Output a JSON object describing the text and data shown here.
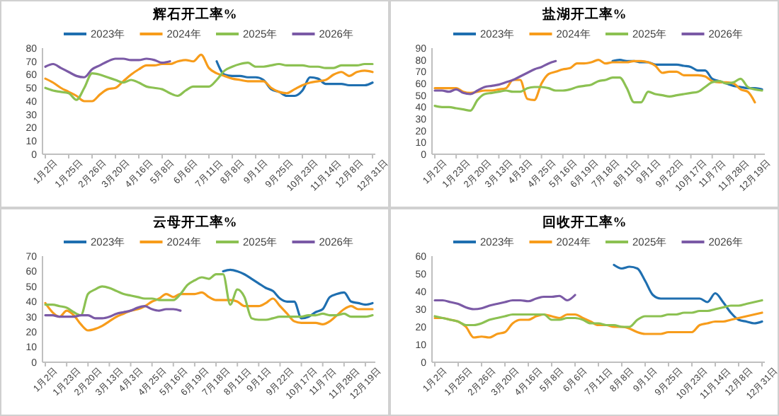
{
  "chart_data": [
    {
      "type": "line",
      "title": "辉石开工率%",
      "legend": "top",
      "grid": false,
      "marker": "none",
      "ylim": [
        0,
        80
      ],
      "yticks": [
        0,
        10,
        20,
        30,
        40,
        50,
        60,
        70,
        80
      ],
      "categories": [
        "1月2日",
        null,
        null,
        "1月25日",
        null,
        null,
        "2月26日",
        null,
        null,
        "3月20日",
        null,
        null,
        "4月16日",
        null,
        null,
        "5月8日",
        null,
        null,
        "6月6日",
        null,
        null,
        "7月11日",
        null,
        null,
        "8月8日",
        null,
        null,
        "9月1日",
        null,
        null,
        "9月25日",
        null,
        null,
        "10月23日",
        null,
        null,
        "11月14日",
        null,
        null,
        "12月8日",
        null,
        null,
        "12月31日"
      ],
      "series": [
        {
          "name": "2023年",
          "color": "#1f6fb0",
          "values": [
            null,
            null,
            null,
            null,
            null,
            null,
            null,
            null,
            null,
            null,
            null,
            null,
            null,
            null,
            null,
            null,
            null,
            null,
            null,
            null,
            null,
            null,
            70,
            60,
            59,
            59,
            58,
            58,
            56,
            49,
            47,
            44,
            44,
            48,
            58,
            57,
            53,
            53,
            53,
            52,
            52,
            52,
            54
          ]
        },
        {
          "name": "2024年",
          "color": "#f79c1b",
          "values": [
            57,
            54,
            50,
            47,
            44,
            40,
            40,
            45,
            49,
            50,
            55,
            60,
            64,
            67,
            67,
            68,
            68,
            70,
            71,
            70,
            75,
            65,
            61,
            59,
            57,
            56,
            55,
            55,
            55,
            50,
            47,
            46,
            49,
            52,
            54,
            55,
            56,
            60,
            62,
            59,
            62,
            63,
            62
          ]
        },
        {
          "name": "2025年",
          "color": "#8cc152",
          "values": [
            50,
            48,
            47,
            46,
            41,
            50,
            61,
            60,
            58,
            56,
            54,
            56,
            54,
            51,
            50,
            49,
            46,
            44,
            48,
            51,
            51,
            51,
            56,
            63,
            66,
            68,
            69,
            66,
            66,
            67,
            68,
            67,
            67,
            67,
            66,
            66,
            65,
            65,
            67,
            67,
            67,
            68,
            68
          ]
        },
        {
          "name": "2026年",
          "color": "#7b5aa6",
          "values": [
            66,
            68,
            65,
            62,
            59,
            58,
            64,
            67,
            70,
            72,
            72,
            71,
            71,
            72,
            71,
            69,
            70,
            null,
            null,
            null,
            null,
            null,
            null,
            null,
            null,
            null,
            null,
            null,
            null,
            null,
            null,
            null,
            null,
            null,
            null,
            null,
            null,
            null,
            null,
            null,
            null,
            null,
            null
          ]
        }
      ]
    },
    {
      "type": "line",
      "title": "盐湖开工率%",
      "legend": "top",
      "grid": false,
      "marker": "none",
      "ylim": [
        0,
        90
      ],
      "yticks": [
        0,
        10,
        20,
        30,
        40,
        50,
        60,
        70,
        80,
        90
      ],
      "categories": [
        "1月2日",
        null,
        null,
        "1月23日",
        null,
        null,
        "2月20日",
        null,
        null,
        "3月13日",
        null,
        null,
        "4月3日",
        null,
        null,
        "4月25日",
        null,
        null,
        "5月16日",
        null,
        null,
        "6月19日",
        null,
        null,
        "7月18日",
        null,
        null,
        "8月11日",
        null,
        null,
        "9月1日",
        null,
        null,
        "9月22日",
        null,
        null,
        "10月17日",
        null,
        null,
        "11月7日",
        null,
        null,
        "11月28日",
        null,
        null,
        "12月19日",
        null
      ],
      "series": [
        {
          "name": "2023年",
          "color": "#1f6fb0",
          "values": [
            null,
            null,
            null,
            null,
            null,
            null,
            null,
            null,
            null,
            null,
            null,
            null,
            null,
            null,
            null,
            null,
            null,
            null,
            null,
            null,
            null,
            null,
            null,
            null,
            null,
            79,
            80,
            79,
            79,
            78,
            78,
            76,
            76,
            76,
            76,
            75,
            74,
            71,
            71,
            64,
            62,
            60,
            58,
            57,
            56,
            56,
            55
          ]
        },
        {
          "name": "2024年",
          "color": "#f79c1b",
          "values": [
            56,
            56,
            56,
            56,
            53,
            52,
            53,
            54,
            54,
            55,
            56,
            63,
            63,
            47,
            46,
            60,
            68,
            70,
            72,
            73,
            77,
            77,
            78,
            80,
            77,
            78,
            78,
            78,
            79,
            79,
            78,
            75,
            69,
            70,
            70,
            67,
            67,
            67,
            66,
            62,
            61,
            61,
            60,
            55,
            53,
            44,
            null
          ]
        },
        {
          "name": "2025年",
          "color": "#8cc152",
          "values": [
            41,
            40,
            40,
            39,
            38,
            37,
            46,
            51,
            52,
            53,
            54,
            53,
            53,
            56,
            57,
            57,
            56,
            54,
            54,
            55,
            57,
            58,
            59,
            62,
            63,
            65,
            65,
            56,
            44,
            44,
            53,
            51,
            50,
            49,
            50,
            51,
            52,
            53,
            57,
            61,
            62,
            60,
            61,
            64,
            57,
            55,
            54
          ]
        },
        {
          "name": "2026年",
          "color": "#7b5aa6",
          "values": [
            54,
            54,
            53,
            55,
            52,
            51,
            54,
            57,
            58,
            59,
            61,
            63,
            66,
            69,
            72,
            74,
            77,
            79,
            null,
            null,
            null,
            null,
            null,
            null,
            null,
            null,
            null,
            null,
            null,
            null,
            null,
            null,
            null,
            null,
            null,
            null,
            null,
            null,
            null,
            null,
            null,
            null,
            null,
            null,
            null,
            null,
            null
          ]
        }
      ]
    },
    {
      "type": "line",
      "title": "云母开工率%",
      "legend": "top",
      "grid": false,
      "marker": "none",
      "ylim": [
        0,
        70
      ],
      "yticks": [
        0,
        10,
        20,
        30,
        40,
        50,
        60,
        70
      ],
      "categories": [
        "1月2日",
        null,
        null,
        "1月23日",
        null,
        null,
        "2月20日",
        null,
        null,
        "3月13日",
        null,
        null,
        "4月3日",
        null,
        null,
        "4月25日",
        null,
        null,
        "5月16日",
        null,
        null,
        "6月19日",
        null,
        null,
        "7月18日",
        null,
        null,
        "8月11日",
        null,
        null,
        "9月1日",
        null,
        null,
        "9月22日",
        null,
        null,
        "10月17日",
        null,
        null,
        "11月7日",
        null,
        null,
        "11月28日",
        null,
        null,
        "12月19日",
        null
      ],
      "series": [
        {
          "name": "2023年",
          "color": "#1f6fb0",
          "values": [
            null,
            null,
            null,
            null,
            null,
            null,
            null,
            null,
            null,
            null,
            null,
            null,
            null,
            null,
            null,
            null,
            null,
            null,
            null,
            null,
            null,
            null,
            null,
            null,
            null,
            60,
            61,
            60,
            58,
            55,
            52,
            49,
            47,
            42,
            40,
            40,
            29,
            30,
            33,
            35,
            43,
            45,
            46,
            40,
            39,
            38,
            39
          ]
        },
        {
          "name": "2024年",
          "color": "#f79c1b",
          "values": [
            39,
            33,
            30,
            34,
            31,
            25,
            21,
            22,
            24,
            27,
            30,
            32,
            34,
            35,
            37,
            40,
            42,
            45,
            43,
            45,
            45,
            45,
            46,
            43,
            41,
            41,
            41,
            40,
            37,
            37,
            37,
            39,
            42,
            37,
            32,
            27,
            26,
            26,
            26,
            25,
            27,
            31,
            35,
            37,
            35,
            35,
            35
          ]
        },
        {
          "name": "2025年",
          "color": "#8cc152",
          "values": [
            38,
            38,
            37,
            36,
            33,
            31,
            45,
            48,
            50,
            49,
            47,
            45,
            44,
            43,
            42,
            42,
            41,
            41,
            41,
            45,
            51,
            54,
            56,
            55,
            58,
            58,
            38,
            48,
            43,
            29,
            28,
            28,
            29,
            30,
            30,
            30,
            30,
            31,
            31,
            32,
            31,
            31,
            32,
            30,
            30,
            30,
            31
          ]
        },
        {
          "name": "2026年",
          "color": "#7b5aa6",
          "values": [
            31,
            31,
            30,
            30,
            30,
            31,
            31,
            29,
            29,
            30,
            32,
            33,
            34,
            36,
            37,
            35,
            34,
            35,
            35,
            34,
            null,
            null,
            null,
            null,
            null,
            null,
            null,
            null,
            null,
            null,
            null,
            null,
            null,
            null,
            null,
            null,
            null,
            null,
            null,
            null,
            null,
            null,
            null,
            null,
            null,
            null,
            null
          ]
        }
      ]
    },
    {
      "type": "line",
      "title": "回收开工率%",
      "legend": "top",
      "grid": false,
      "marker": "none",
      "ylim": [
        0,
        60
      ],
      "yticks": [
        0,
        10,
        20,
        30,
        40,
        50,
        60
      ],
      "categories": [
        "1月2日",
        null,
        null,
        "1月25日",
        null,
        null,
        "2月26日",
        null,
        null,
        "3月20日",
        null,
        null,
        "4月16日",
        null,
        null,
        "5月8日",
        null,
        null,
        "6月6日",
        null,
        null,
        "7月11日",
        null,
        null,
        "8月8日",
        null,
        null,
        "9月1日",
        null,
        null,
        "9月25日",
        null,
        null,
        "10月23日",
        null,
        null,
        "11月14日",
        null,
        null,
        "12月8日",
        null,
        null,
        "12月31日"
      ],
      "series": [
        {
          "name": "2023年",
          "color": "#1f6fb0",
          "values": [
            null,
            null,
            null,
            null,
            null,
            null,
            null,
            null,
            null,
            null,
            null,
            null,
            null,
            null,
            null,
            null,
            null,
            null,
            null,
            null,
            null,
            null,
            null,
            55,
            53,
            54,
            53,
            46,
            38,
            36,
            36,
            36,
            36,
            36,
            36,
            34,
            39,
            34,
            28,
            24,
            23,
            22,
            23
          ]
        },
        {
          "name": "2024年",
          "color": "#f79c1b",
          "values": [
            25,
            25,
            24,
            23,
            20,
            14,
            14.5,
            14,
            16,
            17,
            22,
            24,
            24,
            26,
            27,
            26,
            25,
            27,
            27,
            25,
            23,
            21,
            21,
            20,
            20,
            19,
            17,
            16,
            16,
            16,
            17,
            17,
            17,
            17,
            21,
            22,
            23,
            23,
            24,
            25,
            26,
            27,
            28
          ]
        },
        {
          "name": "2025年",
          "color": "#8cc152",
          "values": [
            26,
            25,
            24,
            23,
            21,
            21,
            22,
            24,
            25,
            26,
            27,
            27,
            27,
            27,
            27,
            24,
            24,
            25,
            25,
            24,
            22,
            22,
            21,
            21,
            20,
            20,
            24,
            26,
            26,
            26,
            27,
            27,
            28,
            28,
            29,
            29,
            30,
            31,
            32,
            32,
            33,
            34,
            35
          ]
        },
        {
          "name": "2026年",
          "color": "#7b5aa6",
          "values": [
            35,
            35,
            34,
            33,
            31,
            30,
            30.5,
            32,
            33,
            34,
            35,
            35,
            34.5,
            36,
            37,
            37,
            37.5,
            35,
            38,
            null,
            null,
            null,
            null,
            null,
            null,
            null,
            null,
            null,
            null,
            null,
            null,
            null,
            null,
            null,
            null,
            null,
            null,
            null,
            null,
            null,
            null,
            null,
            null
          ]
        }
      ]
    }
  ]
}
